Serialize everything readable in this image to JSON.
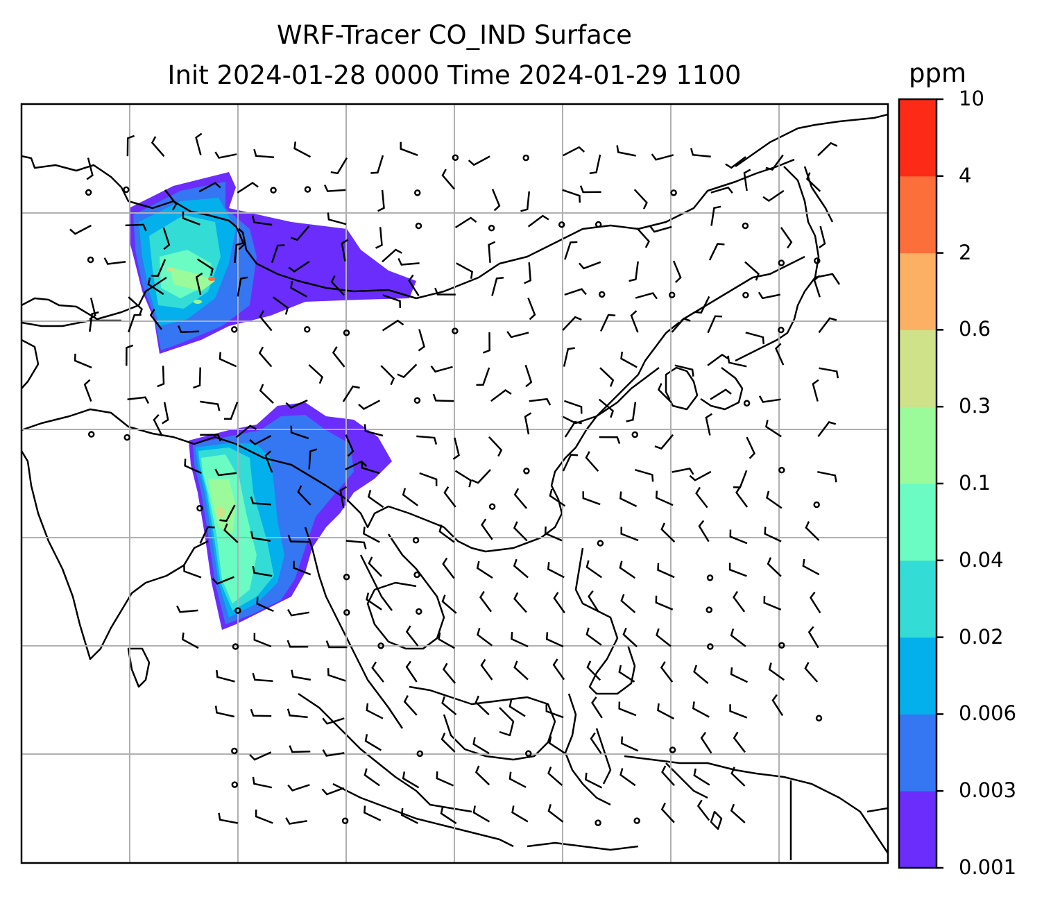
{
  "title": {
    "line1": "WRF-Tracer CO_IND Surface",
    "line2": "Init 2024-01-28 0000 Time 2024-01-29 1100"
  },
  "colorbar": {
    "unit": "ppm",
    "levels": [
      "0.001",
      "0.003",
      "0.006",
      "0.02",
      "0.04",
      "0.1",
      "0.3",
      "0.6",
      "2",
      "4",
      "10"
    ],
    "colors": [
      "#6a2dfc",
      "#3576f2",
      "#03b0ec",
      "#34dcd6",
      "#6afcc2",
      "#9bfa9a",
      "#cfe189",
      "#fcb063",
      "#fc6e3a",
      "#fb2b17"
    ]
  },
  "map": {
    "background": "#ffffff",
    "gridline_color": "#b0b0b0",
    "coastline_color": "#000000"
  }
}
